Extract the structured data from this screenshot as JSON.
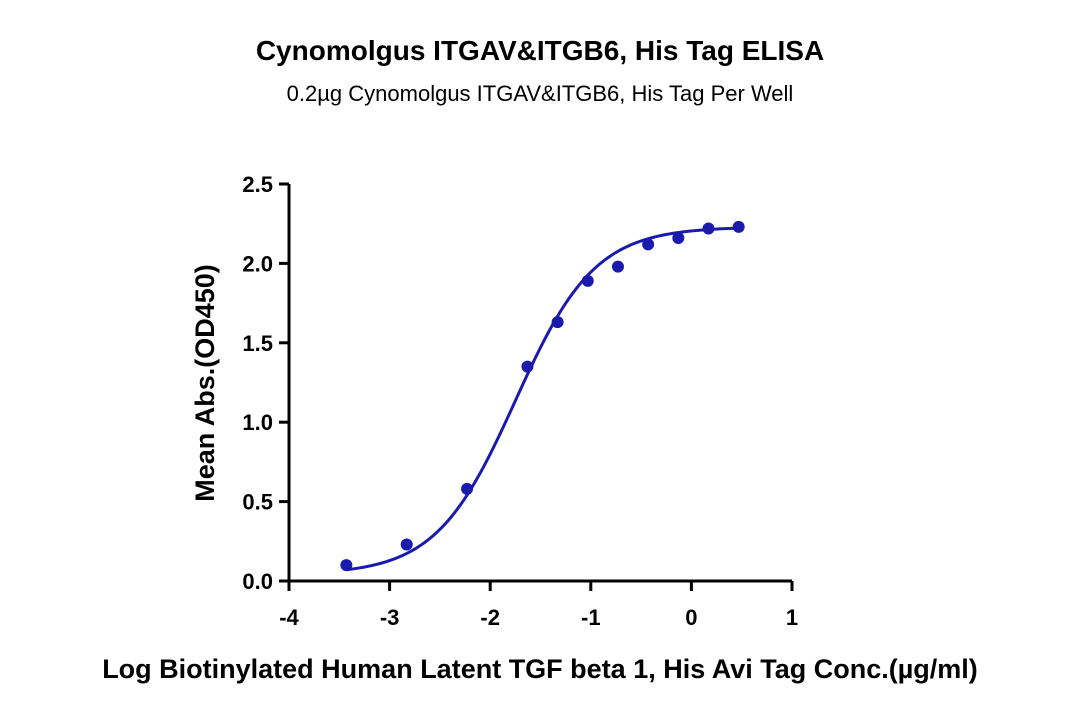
{
  "chart_data": {
    "type": "scatter",
    "title": "Cynomolgus ITGAV&ITGB6, His Tag ELISA",
    "subtitle": "0.2µg Cynomolgus ITGAV&ITGB6, His Tag Per Well",
    "xlabel": "Log Biotinylated Human Latent TGF beta 1, His Avi Tag Conc.(µg/ml)",
    "ylabel": "Mean Abs.(OD450)",
    "xlim": [
      -4,
      1
    ],
    "ylim": [
      0,
      2.5
    ],
    "xticks": [
      "-4",
      "-3",
      "-2",
      "-1",
      "0",
      "1"
    ],
    "yticks": [
      "0.0",
      "0.5",
      "1.0",
      "1.5",
      "2.0",
      "2.5"
    ],
    "grid": false,
    "color": "#1a1aad",
    "series": [
      {
        "x": [
          -3.43,
          -2.83,
          -2.23,
          -1.63,
          -1.33,
          -1.03,
          -0.73,
          -0.43,
          -0.13,
          0.17,
          0.47
        ],
        "y": [
          0.1,
          0.23,
          0.58,
          1.35,
          1.63,
          1.89,
          1.98,
          2.12,
          2.16,
          2.22,
          2.23
        ]
      }
    ],
    "fit": {
      "model": "4PL",
      "bottom": 0.04,
      "top": 2.23,
      "logEC50": -1.75,
      "hill": 1.1
    }
  }
}
